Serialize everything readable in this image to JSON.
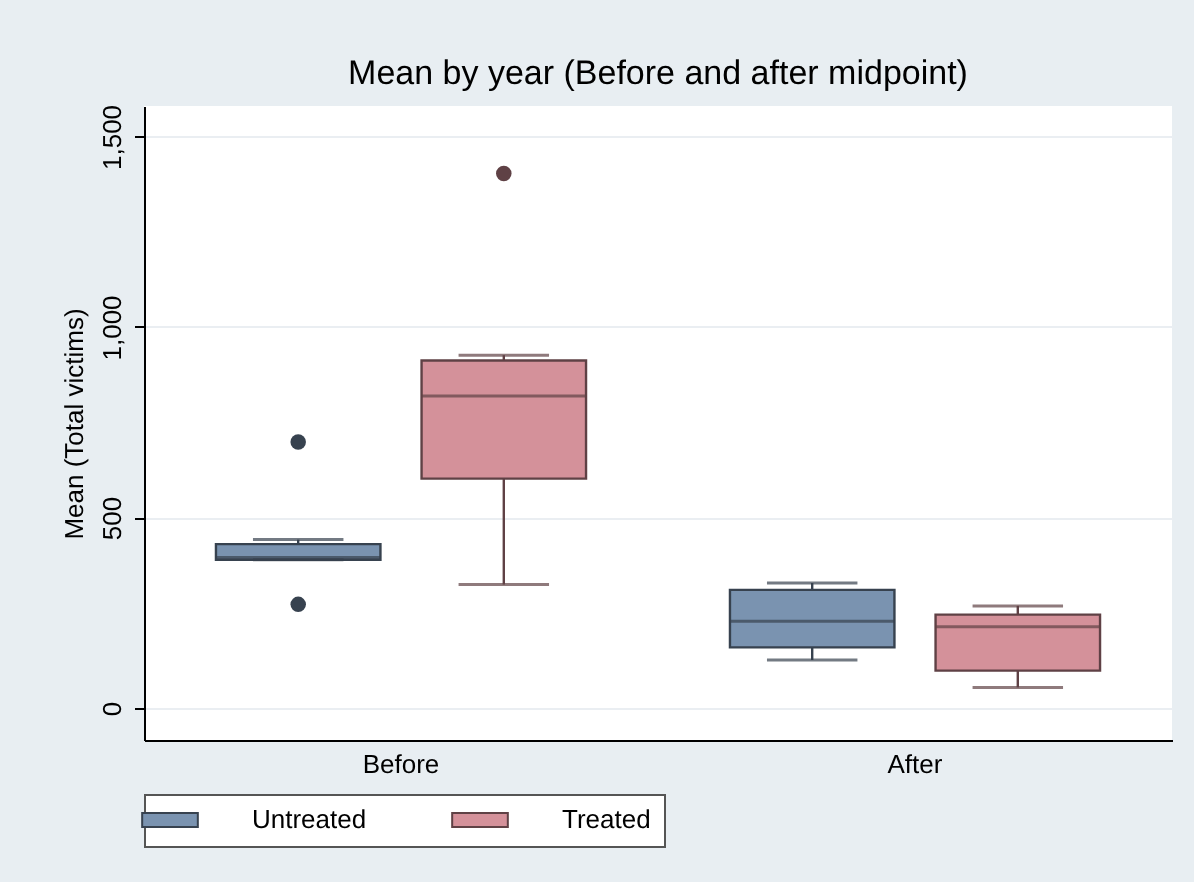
{
  "chart_data": {
    "type": "box",
    "title": "Mean by year (Before and after midpoint)",
    "ylabel": "Mean (Total victims)",
    "categories": [
      "Before",
      "After"
    ],
    "series": [
      {
        "name": "Untreated",
        "color": "#7a93b0",
        "boxes": [
          {
            "low": 389,
            "q1": 389,
            "median": 395,
            "q3": 430,
            "high": 442,
            "outliers": [
              698,
              272
            ]
          },
          {
            "low": 126,
            "q1": 159,
            "median": 228,
            "q3": 310,
            "high": 328
          }
        ]
      },
      {
        "name": "Treated",
        "color": "#d4919a",
        "boxes": [
          {
            "low": 324,
            "q1": 602,
            "median": 819,
            "q3": 912,
            "high": 926,
            "outliers": [
              1403
            ]
          },
          {
            "low": 54,
            "q1": 98,
            "median": 213,
            "q3": 245,
            "high": 268
          }
        ]
      }
    ],
    "ylim": [
      -84,
      1580
    ],
    "yticks": [
      0,
      500,
      {
        "value": 1000,
        "label": "1,000"
      },
      {
        "value": 1500,
        "label": "1,500"
      }
    ],
    "grid": "y",
    "legend": "bottom"
  }
}
